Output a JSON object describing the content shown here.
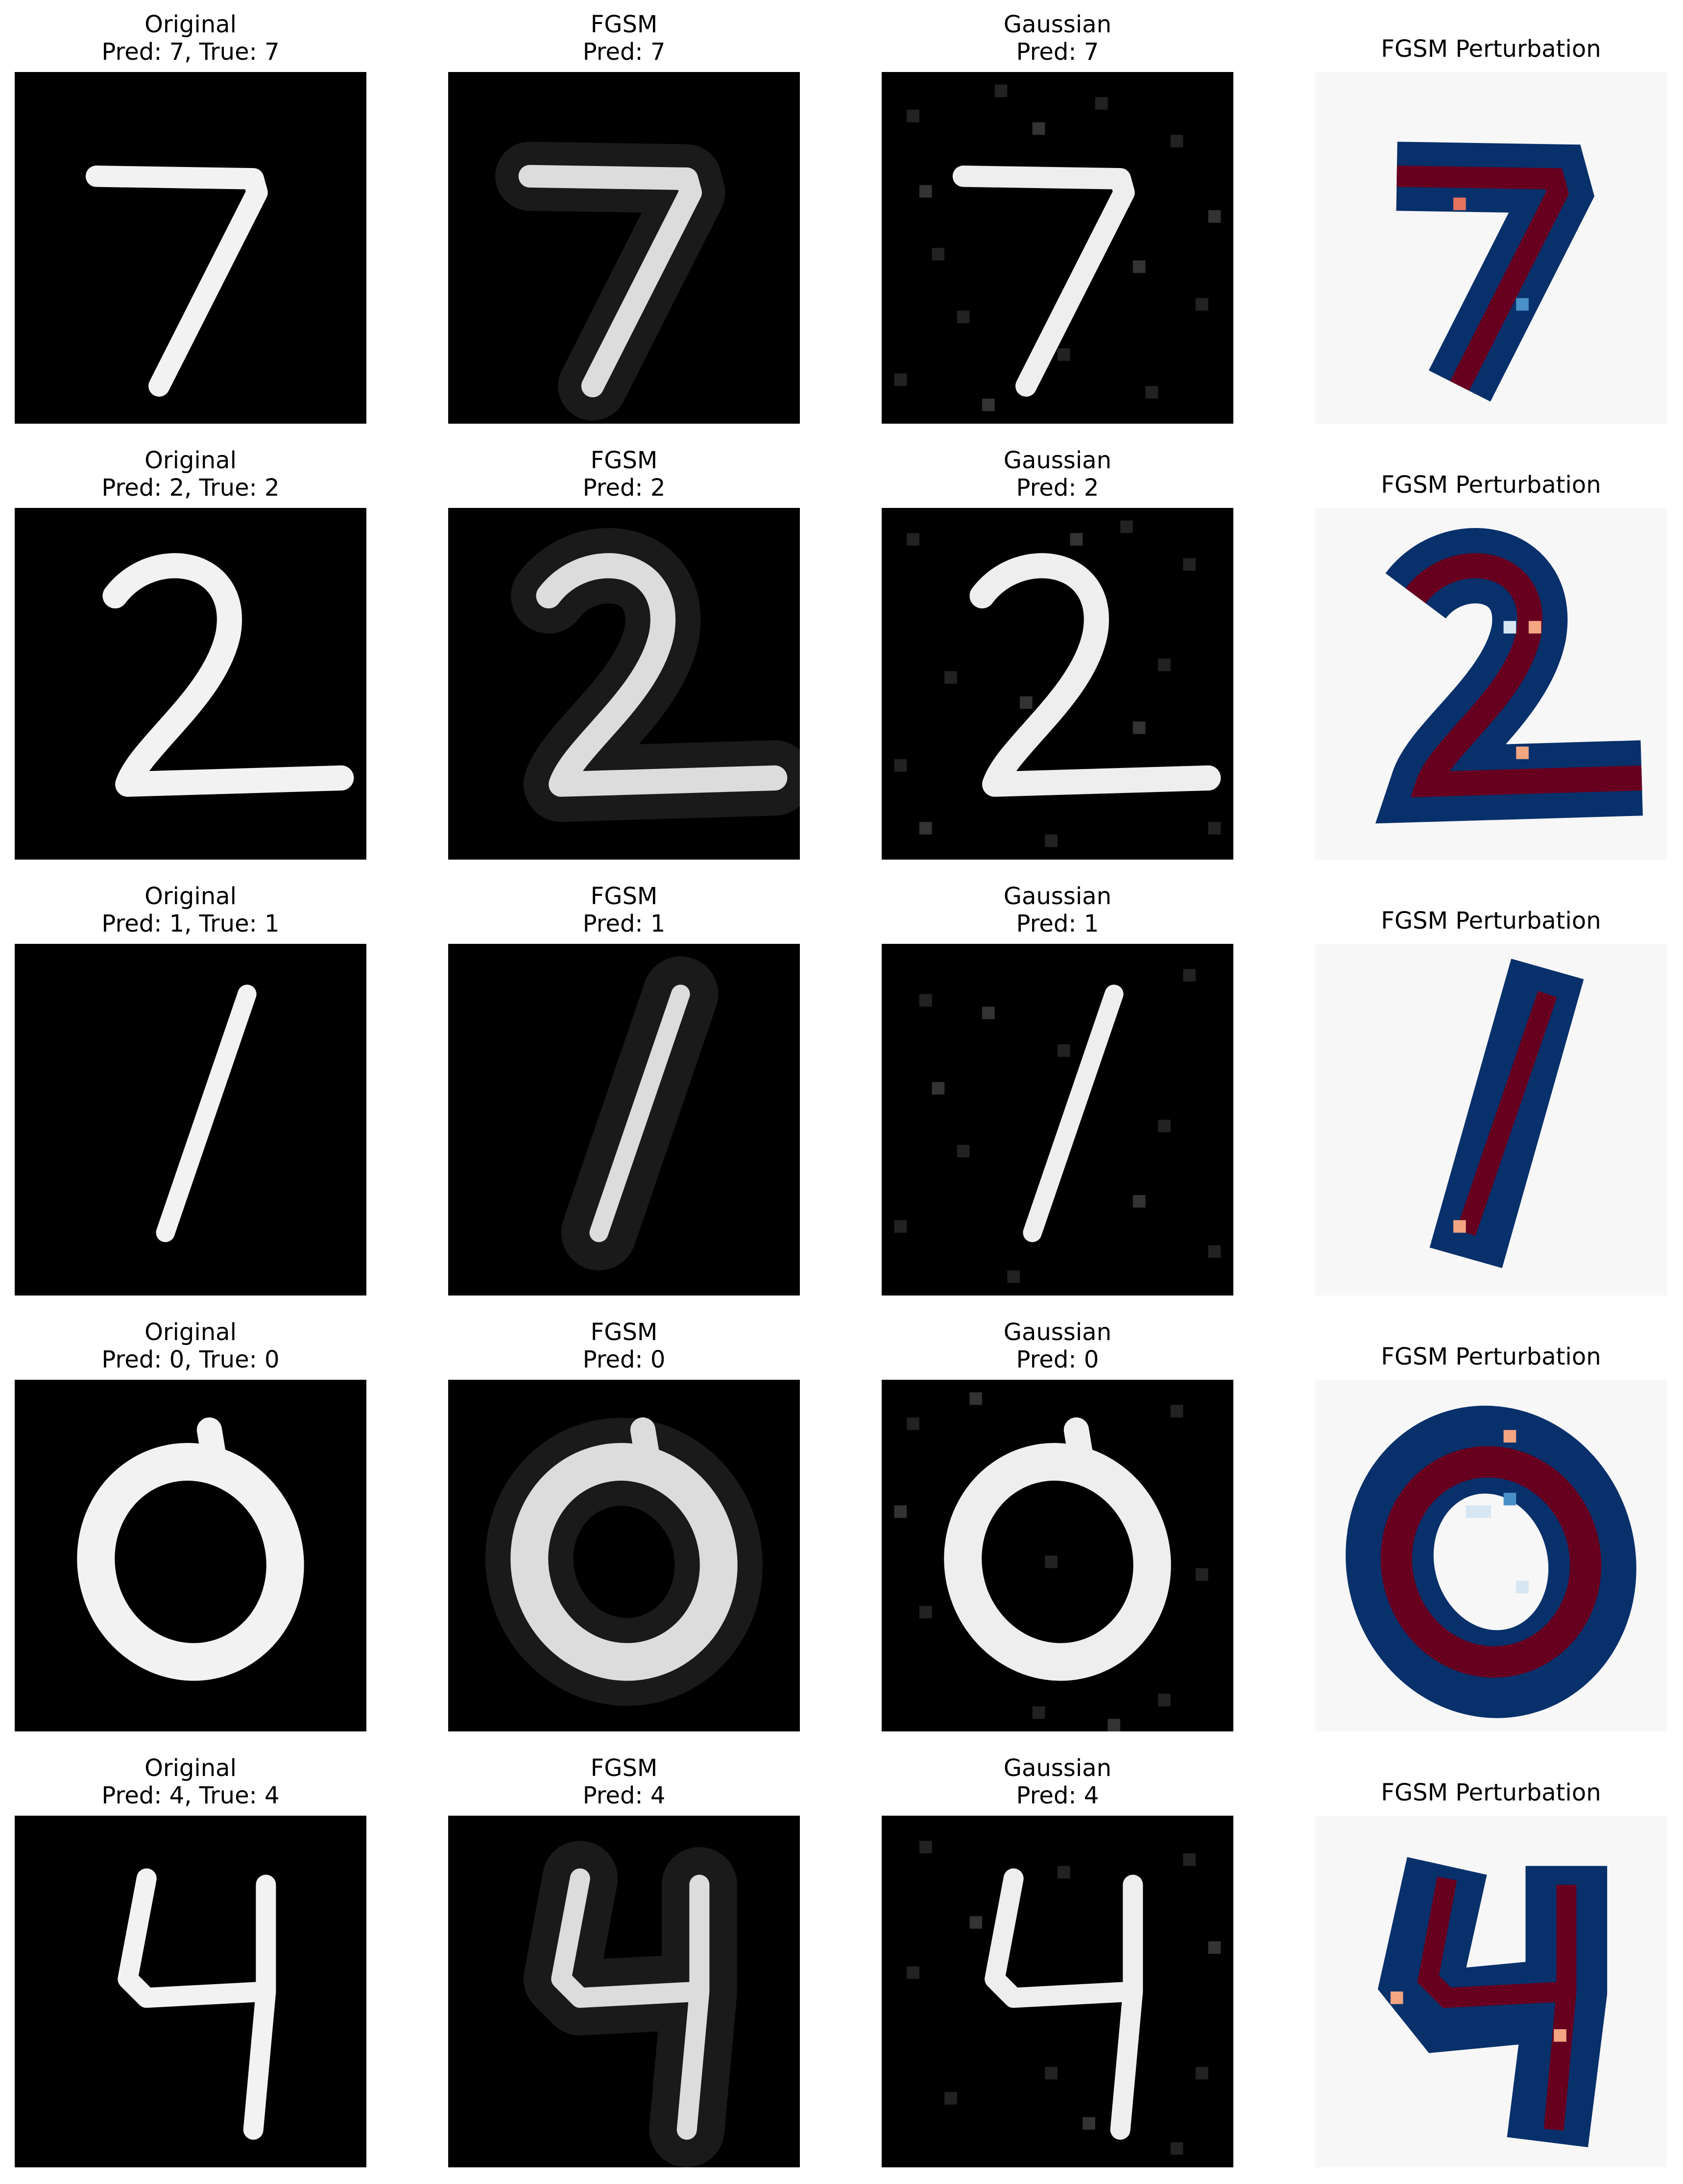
{
  "figure": {
    "rows": [
      {
        "digit": "7",
        "original": {
          "title_line1": "Original",
          "title_line2": "Pred: 7, True: 7"
        },
        "fgsm": {
          "title_line1": "FGSM",
          "title_line2": "Pred: 7"
        },
        "gaussian": {
          "title_line1": "Gaussian",
          "title_line2": "Pred: 7"
        },
        "perturbation": {
          "title_line1": "FGSM Perturbation"
        }
      },
      {
        "digit": "2",
        "original": {
          "title_line1": "Original",
          "title_line2": "Pred: 2, True: 2"
        },
        "fgsm": {
          "title_line1": "FGSM",
          "title_line2": "Pred: 2"
        },
        "gaussian": {
          "title_line1": "Gaussian",
          "title_line2": "Pred: 2"
        },
        "perturbation": {
          "title_line1": "FGSM Perturbation"
        }
      },
      {
        "digit": "1",
        "original": {
          "title_line1": "Original",
          "title_line2": "Pred: 1, True: 1"
        },
        "fgsm": {
          "title_line1": "FGSM",
          "title_line2": "Pred: 1"
        },
        "gaussian": {
          "title_line1": "Gaussian",
          "title_line2": "Pred: 1"
        },
        "perturbation": {
          "title_line1": "FGSM Perturbation"
        }
      },
      {
        "digit": "0",
        "original": {
          "title_line1": "Original",
          "title_line2": "Pred: 0, True: 0"
        },
        "fgsm": {
          "title_line1": "FGSM",
          "title_line2": "Pred: 0"
        },
        "gaussian": {
          "title_line1": "Gaussian",
          "title_line2": "Pred: 0"
        },
        "perturbation": {
          "title_line1": "FGSM Perturbation"
        }
      },
      {
        "digit": "4",
        "original": {
          "title_line1": "Original",
          "title_line2": "Pred: 4, True: 4"
        },
        "fgsm": {
          "title_line1": "FGSM",
          "title_line2": "Pred: 4"
        },
        "gaussian": {
          "title_line1": "Gaussian",
          "title_line2": "Pred: 4"
        },
        "perturbation": {
          "title_line1": "FGSM Perturbation"
        }
      }
    ],
    "colors": {
      "image_bg": "#000000",
      "digit_stroke": "#f2f2f2",
      "fgsm_halo": "#1a1a1a",
      "pert_bg": "#f7f7f7",
      "pert_negative": "#08306b",
      "pert_positive": "#67001f",
      "pert_light": "#d6e6f2"
    }
  }
}
